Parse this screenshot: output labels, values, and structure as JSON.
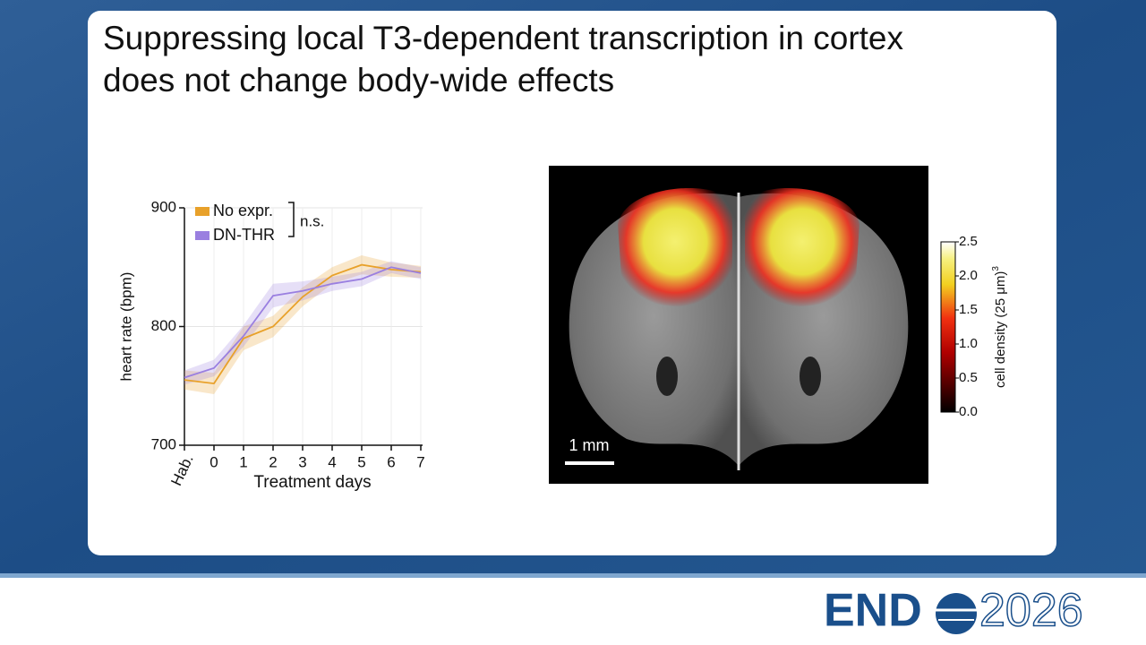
{
  "slide": {
    "title_lines": [
      "Suppressing local T3-dependent transcription in cortex",
      "does not change body-wide effects"
    ],
    "logo": {
      "brand": "END",
      "year": "2026"
    }
  },
  "chart_data": {
    "type": "line",
    "y_label": "heart rate (bpm)",
    "x_label": "Treatment days",
    "categories": [
      "Hab.",
      "0",
      "1",
      "2",
      "3",
      "4",
      "5",
      "6",
      "7"
    ],
    "series": [
      {
        "name": "No expr.",
        "color": "#e8a12a",
        "values": [
          755,
          752,
          790,
          800,
          825,
          843,
          852,
          848,
          846
        ],
        "errors": [
          8,
          9,
          10,
          9,
          8,
          7,
          8,
          6,
          5
        ]
      },
      {
        "name": "DN-THR",
        "color": "#9a7fe0",
        "values": [
          757,
          765,
          792,
          826,
          830,
          836,
          840,
          850,
          845
        ],
        "errors": [
          6,
          7,
          9,
          10,
          8,
          6,
          6,
          5,
          5
        ]
      }
    ],
    "annotation": "n.s.",
    "ylim": [
      700,
      900
    ],
    "yticks": [
      700,
      800,
      900
    ],
    "grid": true,
    "legend": "top-left"
  },
  "image": {
    "scale_bar": "1 mm",
    "colorbar": {
      "label": "cell density (25 μm)",
      "label_exponent": "3",
      "lim": [
        0,
        2.5
      ],
      "ticks": [
        {
          "value": 0,
          "label": "0.0"
        },
        {
          "value": 0.5,
          "label": "0.5"
        },
        {
          "value": 1,
          "label": "1.0"
        },
        {
          "value": 1.5,
          "label": "1.5"
        },
        {
          "value": 2,
          "label": "2.0"
        },
        {
          "value": 2.5,
          "label": "2.5"
        }
      ]
    }
  }
}
